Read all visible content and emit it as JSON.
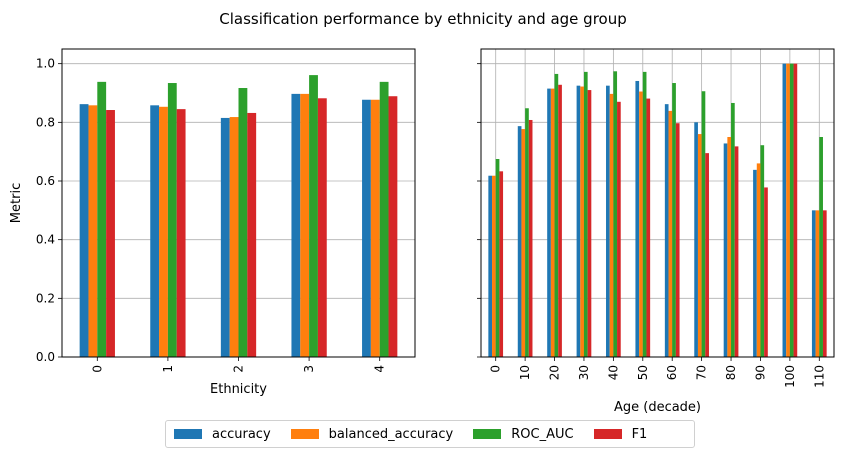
{
  "figure_title": "Classification performance by ethnicity and age group",
  "colors": {
    "accuracy": "#1f77b4",
    "balanced_accuracy": "#ff7f0e",
    "ROC_AUC": "#2ca02c",
    "F1": "#d62728"
  },
  "legend": {
    "placement": "bottom-center",
    "entries": [
      "accuracy",
      "balanced_accuracy",
      "ROC_AUC",
      "F1"
    ]
  },
  "chart_data": [
    {
      "type": "bar",
      "title": "",
      "xlabel": "Ethnicity",
      "ylabel": "Metric",
      "ylim": [
        0,
        1.05
      ],
      "yticks": [
        "0.0",
        "0.2",
        "0.4",
        "0.6",
        "0.8",
        "1.0"
      ],
      "grid": "horizontal",
      "categories": [
        "0",
        "1",
        "2",
        "3",
        "4"
      ],
      "series": [
        {
          "name": "accuracy",
          "values": [
            0.862,
            0.858,
            0.815,
            0.897,
            0.877
          ]
        },
        {
          "name": "balanced_accuracy",
          "values": [
            0.858,
            0.853,
            0.818,
            0.897,
            0.877
          ]
        },
        {
          "name": "ROC_AUC",
          "values": [
            0.938,
            0.934,
            0.917,
            0.961,
            0.938
          ]
        },
        {
          "name": "F1",
          "values": [
            0.842,
            0.845,
            0.832,
            0.882,
            0.889
          ]
        }
      ]
    },
    {
      "type": "bar",
      "title": "",
      "xlabel": "Age (decade)",
      "ylabel": "",
      "ylim": [
        0,
        1.05
      ],
      "grid": "both",
      "categories": [
        "0",
        "10",
        "20",
        "30",
        "40",
        "50",
        "60",
        "70",
        "80",
        "90",
        "100",
        "110"
      ],
      "series": [
        {
          "name": "accuracy",
          "values": [
            0.618,
            0.787,
            0.915,
            0.925,
            0.925,
            0.941,
            0.862,
            0.8,
            0.728,
            0.638,
            1.0,
            0.5
          ]
        },
        {
          "name": "balanced_accuracy",
          "values": [
            0.618,
            0.777,
            0.915,
            0.922,
            0.897,
            0.905,
            0.839,
            0.76,
            0.75,
            0.66,
            1.0,
            0.5
          ]
        },
        {
          "name": "ROC_AUC",
          "values": [
            0.675,
            0.848,
            0.965,
            0.972,
            0.974,
            0.972,
            0.934,
            0.906,
            0.866,
            0.722,
            1.0,
            0.75
          ]
        },
        {
          "name": "F1",
          "values": [
            0.633,
            0.808,
            0.928,
            0.91,
            0.87,
            0.881,
            0.797,
            0.695,
            0.718,
            0.578,
            1.0,
            0.5
          ]
        }
      ]
    }
  ]
}
